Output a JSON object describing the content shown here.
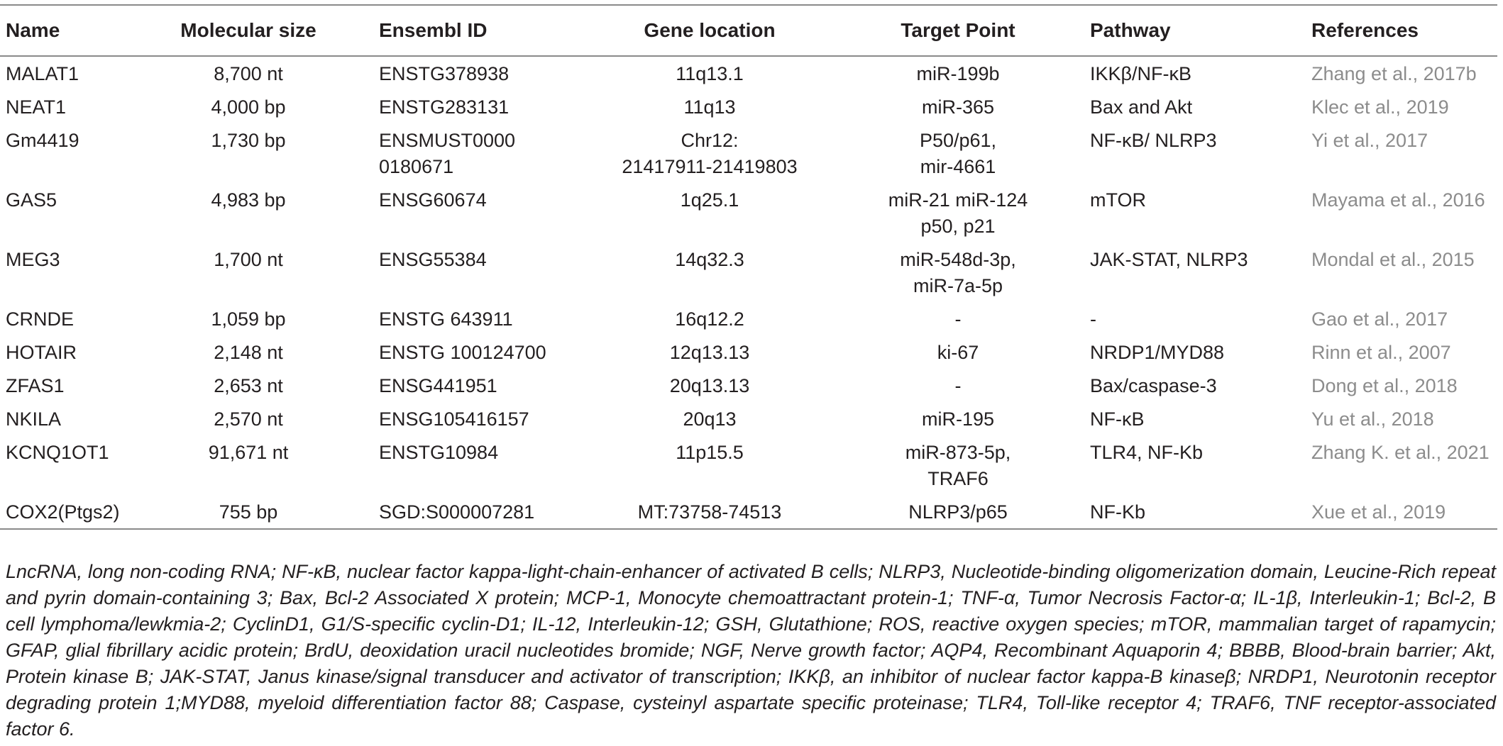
{
  "table": {
    "headers": [
      "Name",
      "Molecular size",
      "Ensembl ID",
      "Gene location",
      "Target Point",
      "Pathway",
      "References"
    ],
    "rows": [
      {
        "name": "MALAT1",
        "size": "8,700 nt",
        "ensembl": "ENSTG378938",
        "location": "11q13.1",
        "target": "miR-199b",
        "pathway": "IKKβ/NF-κB",
        "ref": "Zhang et al., 2017b"
      },
      {
        "name": "NEAT1",
        "size": "4,000 bp",
        "ensembl": "ENSTG283131",
        "location": "11q13",
        "target": "miR-365",
        "pathway": "Bax and Akt",
        "ref": "Klec et al., 2019"
      },
      {
        "name": "Gm4419",
        "size": "1,730 bp",
        "ensembl": "ENSMUST0000\n0180671",
        "location": "Chr12:\n21417911-21419803",
        "target": "P50/p61,\nmir-4661",
        "pathway": "NF-κB/ NLRP3",
        "ref": "Yi et al., 2017"
      },
      {
        "name": "GAS5",
        "size": "4,983 bp",
        "ensembl": "ENSG60674",
        "location": "1q25.1",
        "target": "miR-21 miR-124\np50, p21",
        "pathway": "mTOR",
        "ref": "Mayama et al., 2016"
      },
      {
        "name": "MEG3",
        "size": "1,700 nt",
        "ensembl": "ENSG55384",
        "location": "14q32.3",
        "target": "miR-548d-3p,\nmiR-7a-5p",
        "pathway": "JAK-STAT, NLRP3",
        "ref": "Mondal et al., 2015"
      },
      {
        "name": "CRNDE",
        "size": "1,059 bp",
        "ensembl": "ENSTG 643911",
        "location": "16q12.2",
        "target": "-",
        "pathway": "-",
        "ref": "Gao et al., 2017"
      },
      {
        "name": "HOTAIR",
        "size": "2,148 nt",
        "ensembl": "ENSTG 100124700",
        "location": "12q13.13",
        "target": "ki-67",
        "pathway": "NRDP1/MYD88",
        "ref": "Rinn et al., 2007"
      },
      {
        "name": "ZFAS1",
        "size": "2,653 nt",
        "ensembl": "ENSG441951",
        "location": "20q13.13",
        "target": "-",
        "pathway": "Bax/caspase-3",
        "ref": "Dong et al., 2018"
      },
      {
        "name": "NKILA",
        "size": "2,570 nt",
        "ensembl": "ENSG105416157",
        "location": "20q13",
        "target": "miR-195",
        "pathway": "NF-κB",
        "ref": "Yu et al., 2018"
      },
      {
        "name": "KCNQ1OT1",
        "size": "91,671 nt",
        "ensembl": "ENSTG10984",
        "location": "11p15.5",
        "target": "miR-873-5p,\nTRAF6",
        "pathway": "TLR4, NF-Kb",
        "ref": "Zhang K. et al., 2021"
      },
      {
        "name": "COX2(Ptgs2)",
        "size": "755 bp",
        "ensembl": "SGD:S000007281",
        "location": "MT:73758-74513",
        "target": "NLRP3/p65",
        "pathway": "NF-Kb",
        "ref": "Xue et al., 2019"
      }
    ]
  },
  "footnote": "LncRNA, long non-coding RNA; NF-κB, nuclear factor kappa-light-chain-enhancer of activated B cells; NLRP3, Nucleotide-binding oligomerization domain, Leucine-Rich repeat and pyrin domain-containing 3; Bax, Bcl-2 Associated X protein; MCP-1, Monocyte chemoattractant protein-1; TNF-α, Tumor Necrosis Factor-α; IL-1β, Interleukin-1; Bcl-2, B cell lymphoma/lewkmia-2; CyclinD1, G1/S-specific cyclin-D1; IL-12, Interleukin-12; GSH, Glutathione; ROS, reactive oxygen species; mTOR, mammalian target of rapamycin; GFAP, glial fibrillary acidic protein; BrdU, deoxidation uracil nucleotides bromide; NGF, Nerve growth factor; AQP4, Recombinant Aquaporin 4; BBBB, Blood-brain barrier; Akt, Protein kinase B; JAK-STAT, Janus kinase/signal transducer and activator of transcription; IKKβ, an inhibitor of nuclear factor kappa-B kinaseβ; NRDP1, Neurotonin receptor degrading protein 1;MYD88, myeloid differentiation factor 88; Caspase, cysteinyl aspartate specific proteinase; TLR4, Toll-like receptor 4; TRAF6, TNF receptor-associated factor 6."
}
